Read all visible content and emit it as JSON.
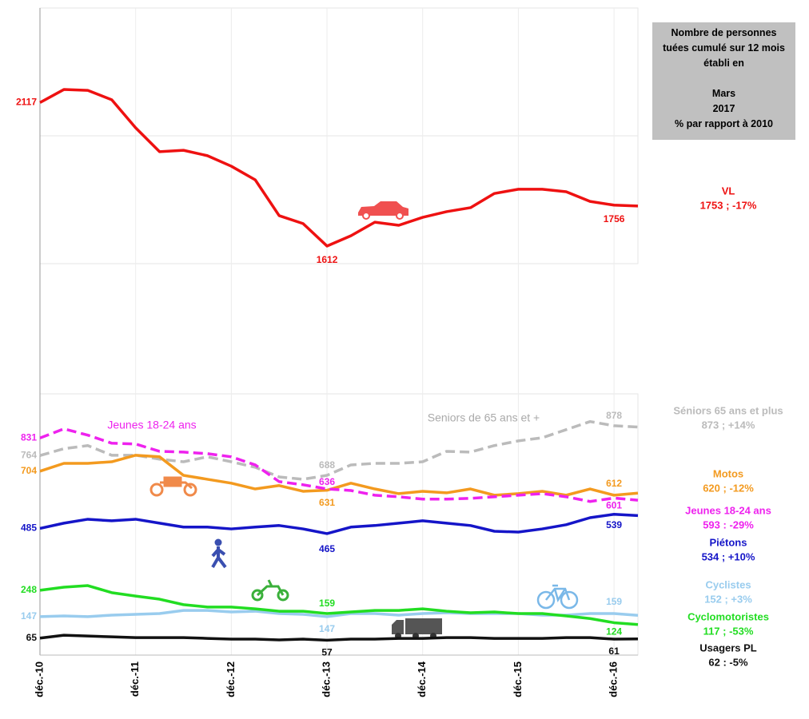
{
  "chart_data": [
    {
      "type": "line",
      "x": [
        0,
        3,
        6,
        9,
        12,
        15,
        18,
        21,
        24,
        27,
        30,
        33,
        36,
        39,
        42,
        45,
        48,
        51,
        54,
        57,
        60,
        63,
        66,
        69,
        72,
        75
      ],
      "xlim": [
        0,
        75
      ],
      "ylim": [
        1550,
        2450
      ],
      "series": [
        {
          "name": "VL",
          "summary": "1753 ; -17%",
          "color": "#ee1111",
          "dashed": false,
          "labeled": [
            0,
            12,
            24
          ],
          "values": [
            2117,
            2163,
            2160,
            2127,
            2028,
            1944,
            1949,
            1930,
            1893,
            1845,
            1719,
            1691,
            1612,
            1648,
            1696,
            1685,
            1713,
            1733,
            1747,
            1797,
            1812,
            1812,
            1803,
            1769,
            1756,
            1753
          ]
        }
      ]
    },
    {
      "type": "line",
      "x": [
        0,
        3,
        6,
        9,
        12,
        15,
        18,
        21,
        24,
        27,
        30,
        33,
        36,
        39,
        42,
        45,
        48,
        51,
        54,
        57,
        60,
        63,
        66,
        69,
        72,
        75
      ],
      "xlim": [
        0,
        75
      ],
      "ylim": [
        0,
        1000
      ],
      "xticks": [
        {
          "value": 0,
          "label": "déc.-10"
        },
        {
          "value": 12,
          "label": "déc.-11"
        },
        {
          "value": 24,
          "label": "déc.-12"
        },
        {
          "value": 36,
          "label": "déc.-13"
        },
        {
          "value": 48,
          "label": "déc.-14"
        },
        {
          "value": 60,
          "label": "déc.-15"
        },
        {
          "value": 72,
          "label": "déc.-16"
        }
      ],
      "annotations": [
        {
          "text": "Jeunes 18-24 ans",
          "color": "#ee22ee"
        },
        {
          "text": "Seniors de 65 ans et +",
          "color": "#aaaaaa"
        }
      ],
      "series": [
        {
          "name": "Séniors 65 ans et plus",
          "summary": "873 ; +14%",
          "color": "#bbbbbb",
          "dashed": true,
          "labeled": [
            0,
            12,
            24
          ],
          "values": [
            764,
            790,
            802,
            765,
            765,
            750,
            740,
            759,
            740,
            719,
            682,
            673,
            688,
            728,
            734,
            734,
            740,
            780,
            777,
            802,
            820,
            832,
            863,
            894,
            878,
            873
          ]
        },
        {
          "name": "Motos",
          "summary": "620 ; -12%",
          "color": "#f39a1f",
          "dashed": false,
          "labeled": [
            0,
            12,
            24
          ],
          "values": [
            704,
            734,
            734,
            740,
            765,
            759,
            688,
            673,
            658,
            636,
            649,
            627,
            631,
            658,
            636,
            618,
            627,
            621,
            636,
            612,
            618,
            627,
            612,
            636,
            612,
            620
          ]
        },
        {
          "name": "Jeunes 18-24 ans",
          "summary": "593 : -29%",
          "color": "#ee22ee",
          "dashed": true,
          "labeled": [
            0,
            12,
            24
          ],
          "values": [
            831,
            866,
            842,
            811,
            808,
            780,
            777,
            771,
            759,
            728,
            664,
            652,
            636,
            630,
            612,
            606,
            597,
            597,
            600,
            606,
            612,
            618,
            606,
            588,
            601,
            593
          ]
        },
        {
          "name": "Piétons",
          "summary": "534 ; +10%",
          "color": "#1515c8",
          "dashed": false,
          "labeled": [
            0,
            12,
            24
          ],
          "values": [
            485,
            505,
            520,
            514,
            520,
            505,
            490,
            490,
            483,
            490,
            496,
            483,
            465,
            490,
            496,
            505,
            514,
            505,
            496,
            474,
            471,
            483,
            499,
            526,
            539,
            534
          ]
        },
        {
          "name": "Cyclistes",
          "summary": "152 ; +3%",
          "color": "#99ccee",
          "dashed": false,
          "labeled": [
            0,
            12,
            24
          ],
          "values": [
            147,
            150,
            147,
            153,
            156,
            159,
            171,
            171,
            165,
            168,
            159,
            156,
            147,
            159,
            159,
            153,
            159,
            162,
            159,
            159,
            159,
            153,
            153,
            159,
            159,
            152
          ]
        },
        {
          "name": "Cyclomotoristes",
          "summary": "117 ; -53%",
          "color": "#22dd22",
          "dashed": false,
          "labeled": [
            0,
            12,
            24
          ],
          "values": [
            248,
            260,
            266,
            239,
            226,
            214,
            193,
            184,
            184,
            177,
            168,
            168,
            159,
            165,
            171,
            171,
            177,
            168,
            162,
            165,
            159,
            159,
            150,
            140,
            124,
            117
          ]
        },
        {
          "name": "Usagers PL",
          "summary": "62 : -5%",
          "color": "#111111",
          "dashed": false,
          "labeled": [
            0,
            12,
            24
          ],
          "values": [
            65,
            76,
            73,
            70,
            67,
            67,
            67,
            64,
            61,
            61,
            58,
            61,
            57,
            61,
            61,
            64,
            64,
            67,
            67,
            64,
            64,
            64,
            67,
            67,
            61,
            62
          ]
        }
      ]
    }
  ],
  "box": [
    "Nombre de personnes tuées cumulé sur 12 mois établi en",
    "Mars",
    "2017",
    "% par rapport à 2010"
  ]
}
